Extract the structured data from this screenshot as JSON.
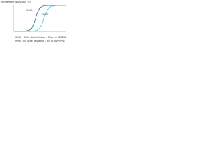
{
  "chart_data": {
    "type": "line",
    "ylabel": "Rendement lixiviation (%)",
    "x": [
      0,
      10,
      20,
      30,
      35,
      40,
      45,
      50,
      55,
      60,
      65,
      70,
      75,
      80,
      90,
      100
    ],
    "series": [
      {
        "name": "SMAE",
        "color": "#1f6f7a",
        "values": [
          0,
          0,
          1,
          4,
          12,
          35,
          70,
          90,
          97,
          99,
          100,
          100,
          100,
          100,
          100,
          100
        ]
      },
      {
        "name": "SPAE",
        "color": "#4fc3d9",
        "values": [
          0,
          0,
          0,
          0,
          1,
          2,
          5,
          12,
          30,
          62,
          85,
          95,
          98,
          99,
          100,
          100
        ]
      }
    ],
    "xlim": [
      0,
      100
    ],
    "ylim": [
      0,
      100
    ],
    "annotations": [
      "SMAE : 50 % de lixiviation : 10 µs ou PSMNE",
      "SPAE : 50 % de lixiviation : 30 µs ou PSPNE"
    ]
  }
}
